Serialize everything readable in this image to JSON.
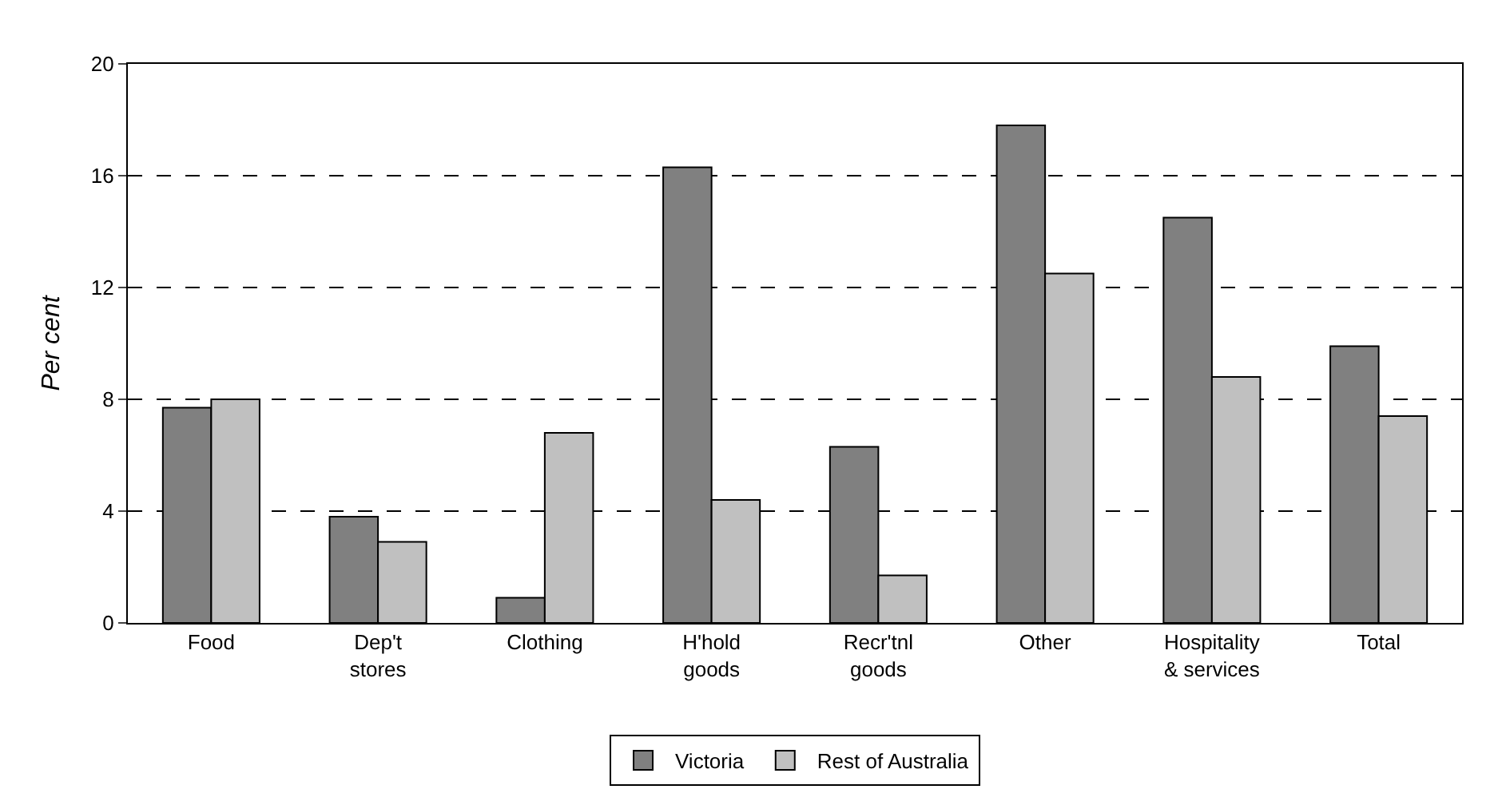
{
  "chart_data": {
    "type": "bar",
    "ylabel": "Per cent",
    "categories": [
      "Food",
      "Dep't\nstores",
      "Clothing",
      "H'hold\ngoods",
      "Recr'tnl\ngoods",
      "Other",
      "Hospitality\n& services",
      "Total"
    ],
    "series": [
      {
        "name": "Victoria",
        "color": "#808080",
        "values": [
          7.7,
          3.8,
          0.9,
          16.3,
          6.3,
          17.8,
          14.5,
          9.9
        ]
      },
      {
        "name": "Rest of Australia",
        "color": "#c0c0c0",
        "values": [
          8.0,
          2.9,
          6.8,
          4.4,
          1.7,
          12.5,
          8.8,
          7.4
        ]
      }
    ],
    "ylim": [
      0,
      20
    ],
    "yticks": [
      0,
      4,
      8,
      12,
      16,
      20
    ],
    "grid": "y",
    "legend": "bottom"
  }
}
